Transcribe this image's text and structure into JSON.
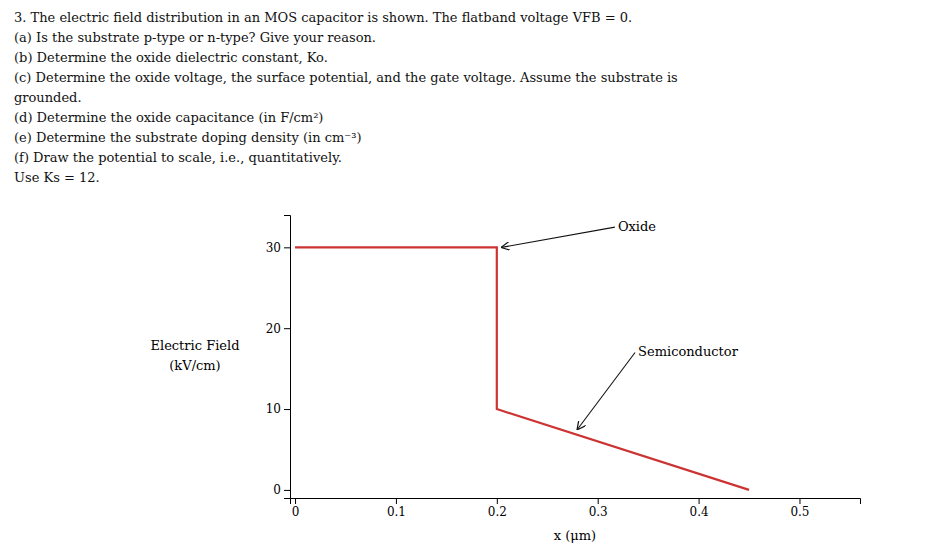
{
  "chart_data": {
    "type": "line",
    "text_lines": [
      "3. The electric field distribution in an MOS capacitor is shown. The flatband voltage VFB = 0.",
      "(a) Is the substrate p-type or n-type? Give your reason.",
      "(b) Determine the oxide dielectric constant, Ko.",
      "(c) Determine the oxide voltage, the surface potential, and the gate voltage. Assume the substrate is",
      "grounded.",
      "(d) Determine the oxide capacitance (in F/cm²)",
      "(e) Determine the substrate doping density (in cm⁻³)",
      "(f) Draw the potential to scale, i.e., quantitatively.",
      "Use Ks = 12."
    ],
    "xlabel": "x (μm)",
    "ylabel": [
      "Electric Field",
      "(kV/cm)"
    ],
    "x": [
      0.0,
      0.2,
      0.2,
      0.45
    ],
    "values": [
      30.0,
      30.0,
      10.0,
      0.0
    ],
    "color": "#cc3333",
    "xlim": [
      -0.005,
      0.56
    ],
    "ylim": [
      -1.0,
      34
    ],
    "xticks": [
      0,
      0.1,
      0.2,
      0.3,
      0.4,
      0.5
    ],
    "yticks": [
      0,
      10,
      20,
      30
    ],
    "annotations": [
      {
        "text": "Oxide",
        "x": 0.32,
        "y": 32.5,
        "arrow_x": 0.205,
        "arrow_y": 30.0
      },
      {
        "text": "Semiconductor",
        "x": 0.34,
        "y": 17.0,
        "arrow_x": 0.28,
        "arrow_y": 7.5
      }
    ]
  }
}
